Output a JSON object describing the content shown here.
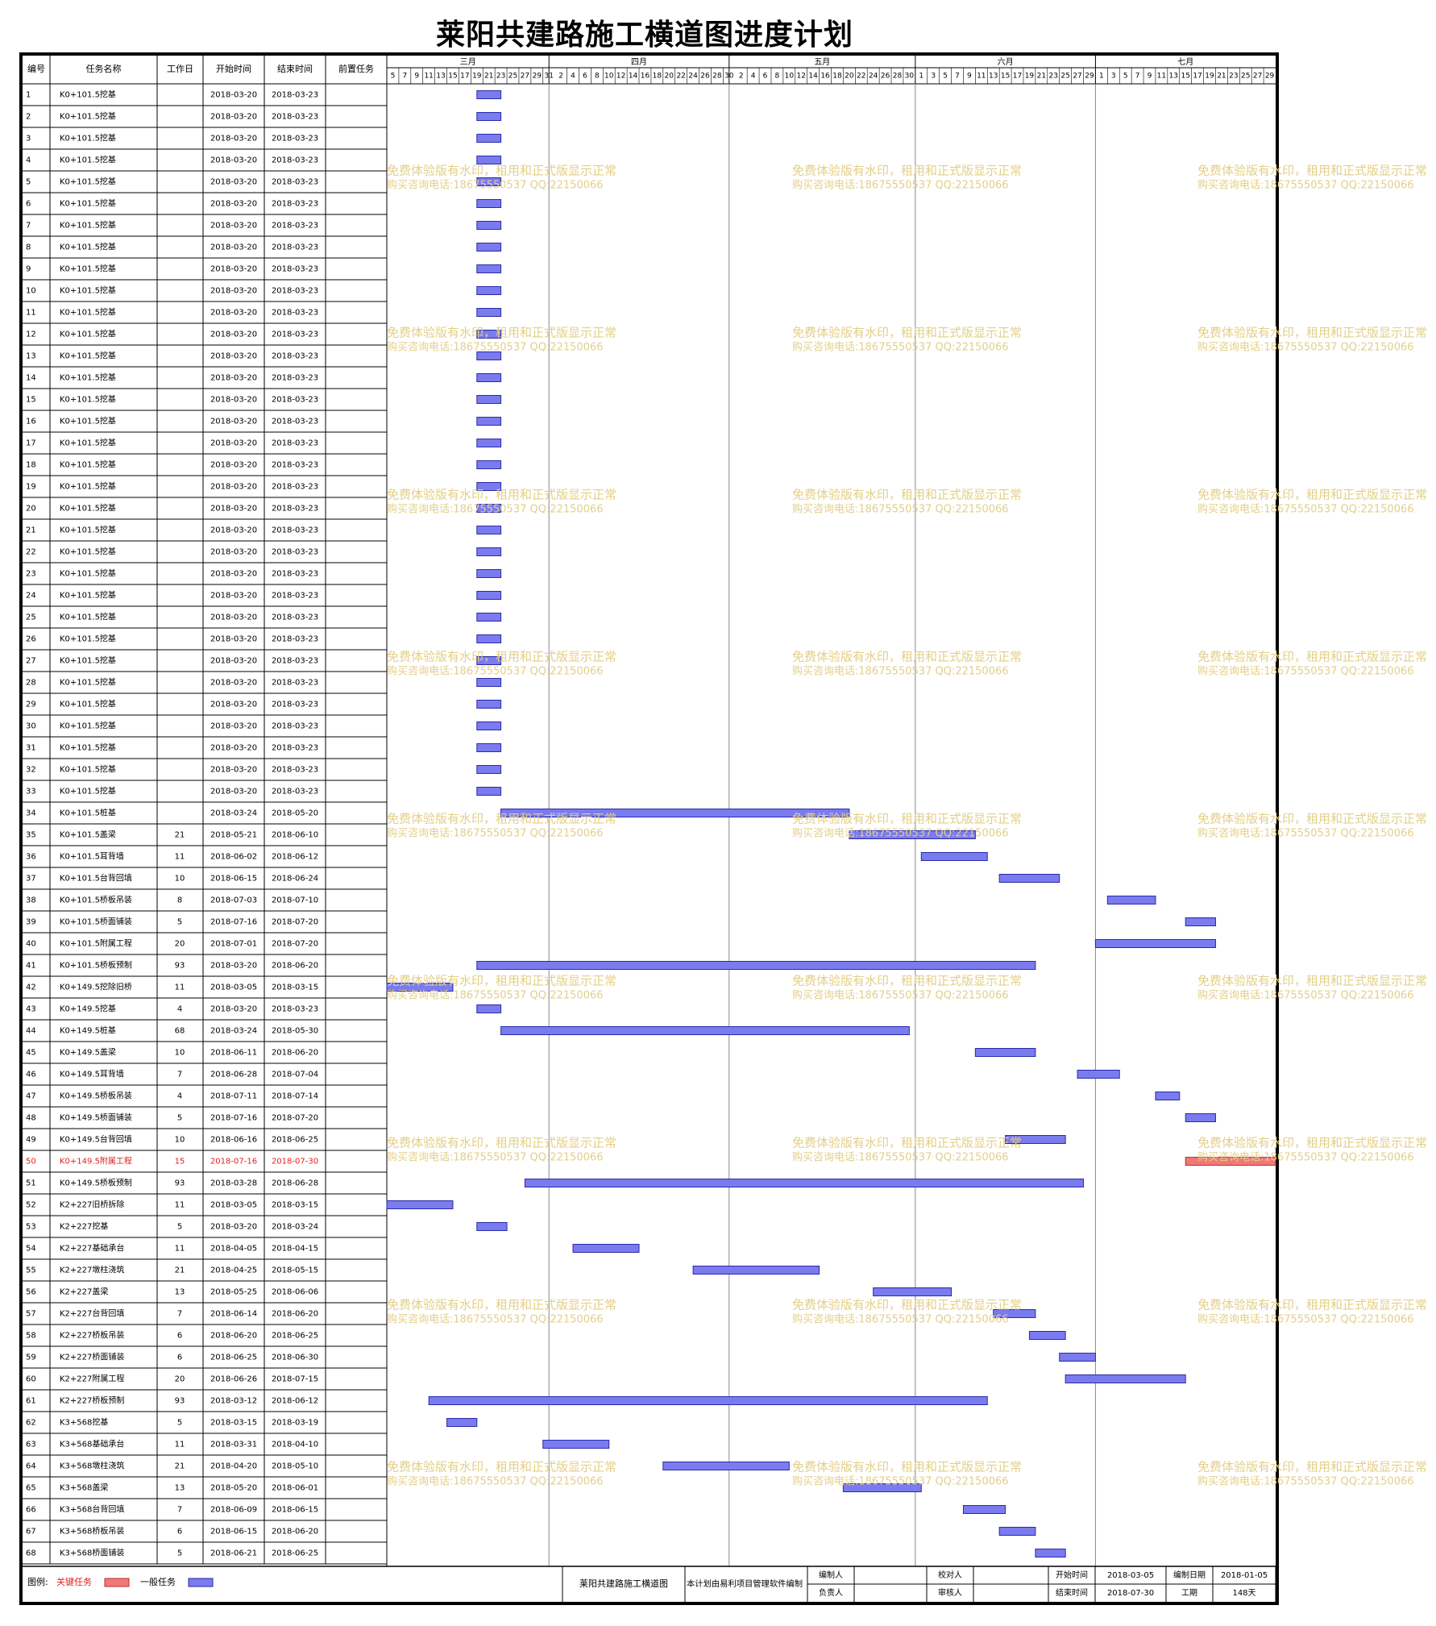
{
  "title": "莱阳共建路施工横道图进度计划",
  "columns": [
    "编号",
    "任务名称",
    "工作日",
    "开始时间",
    "结束时间",
    "前置任务"
  ],
  "months": [
    {
      "label": "三月",
      "days": [
        5,
        7,
        9,
        11,
        13,
        15,
        17,
        19,
        21,
        23,
        25,
        27,
        29,
        31
      ]
    },
    {
      "label": "四月",
      "days": [
        2,
        4,
        6,
        8,
        10,
        12,
        14,
        16,
        18,
        20,
        22,
        24,
        26,
        28,
        30
      ]
    },
    {
      "label": "五月",
      "days": [
        2,
        4,
        6,
        8,
        10,
        12,
        14,
        16,
        18,
        20,
        22,
        24,
        26,
        28,
        30
      ]
    },
    {
      "label": "六月",
      "days": [
        1,
        3,
        5,
        7,
        9,
        11,
        13,
        15,
        17,
        19,
        21,
        23,
        25,
        27,
        29
      ]
    },
    {
      "label": "七月",
      "days": [
        1,
        3,
        5,
        7,
        9,
        11,
        13,
        15,
        17,
        19,
        21,
        23,
        25,
        27,
        29
      ]
    }
  ],
  "chart_data": {
    "type": "gantt",
    "title": "莱阳共建路施工横道图进度计划",
    "x_range": [
      "2018-03-05",
      "2018-07-30"
    ],
    "tasks": [
      {
        "id": "1",
        "name": "K0+101.5挖基",
        "days": "",
        "start": "2018-03-20",
        "end": "2018-03-23",
        "pred": "",
        "critical": false
      },
      {
        "id": "2",
        "name": "K0+101.5挖基",
        "days": "",
        "start": "2018-03-20",
        "end": "2018-03-23",
        "pred": "",
        "critical": false
      },
      {
        "id": "3",
        "name": "K0+101.5挖基",
        "days": "",
        "start": "2018-03-20",
        "end": "2018-03-23",
        "pred": "",
        "critical": false
      },
      {
        "id": "4",
        "name": "K0+101.5挖基",
        "days": "",
        "start": "2018-03-20",
        "end": "2018-03-23",
        "pred": "",
        "critical": false
      },
      {
        "id": "5",
        "name": "K0+101.5挖基",
        "days": "",
        "start": "2018-03-20",
        "end": "2018-03-23",
        "pred": "",
        "critical": false
      },
      {
        "id": "6",
        "name": "K0+101.5挖基",
        "days": "",
        "start": "2018-03-20",
        "end": "2018-03-23",
        "pred": "",
        "critical": false
      },
      {
        "id": "7",
        "name": "K0+101.5挖基",
        "days": "",
        "start": "2018-03-20",
        "end": "2018-03-23",
        "pred": "",
        "critical": false
      },
      {
        "id": "8",
        "name": "K0+101.5挖基",
        "days": "",
        "start": "2018-03-20",
        "end": "2018-03-23",
        "pred": "",
        "critical": false
      },
      {
        "id": "9",
        "name": "K0+101.5挖基",
        "days": "",
        "start": "2018-03-20",
        "end": "2018-03-23",
        "pred": "",
        "critical": false
      },
      {
        "id": "10",
        "name": "K0+101.5挖基",
        "days": "",
        "start": "2018-03-20",
        "end": "2018-03-23",
        "pred": "",
        "critical": false
      },
      {
        "id": "11",
        "name": "K0+101.5挖基",
        "days": "",
        "start": "2018-03-20",
        "end": "2018-03-23",
        "pred": "",
        "critical": false
      },
      {
        "id": "12",
        "name": "K0+101.5挖基",
        "days": "",
        "start": "2018-03-20",
        "end": "2018-03-23",
        "pred": "",
        "critical": false
      },
      {
        "id": "13",
        "name": "K0+101.5挖基",
        "days": "",
        "start": "2018-03-20",
        "end": "2018-03-23",
        "pred": "",
        "critical": false
      },
      {
        "id": "14",
        "name": "K0+101.5挖基",
        "days": "",
        "start": "2018-03-20",
        "end": "2018-03-23",
        "pred": "",
        "critical": false
      },
      {
        "id": "15",
        "name": "K0+101.5挖基",
        "days": "",
        "start": "2018-03-20",
        "end": "2018-03-23",
        "pred": "",
        "critical": false
      },
      {
        "id": "16",
        "name": "K0+101.5挖基",
        "days": "",
        "start": "2018-03-20",
        "end": "2018-03-23",
        "pred": "",
        "critical": false
      },
      {
        "id": "17",
        "name": "K0+101.5挖基",
        "days": "",
        "start": "2018-03-20",
        "end": "2018-03-23",
        "pred": "",
        "critical": false
      },
      {
        "id": "18",
        "name": "K0+101.5挖基",
        "days": "",
        "start": "2018-03-20",
        "end": "2018-03-23",
        "pred": "",
        "critical": false
      },
      {
        "id": "19",
        "name": "K0+101.5挖基",
        "days": "",
        "start": "2018-03-20",
        "end": "2018-03-23",
        "pred": "",
        "critical": false
      },
      {
        "id": "20",
        "name": "K0+101.5挖基",
        "days": "",
        "start": "2018-03-20",
        "end": "2018-03-23",
        "pred": "",
        "critical": false
      },
      {
        "id": "21",
        "name": "K0+101.5挖基",
        "days": "",
        "start": "2018-03-20",
        "end": "2018-03-23",
        "pred": "",
        "critical": false
      },
      {
        "id": "22",
        "name": "K0+101.5挖基",
        "days": "",
        "start": "2018-03-20",
        "end": "2018-03-23",
        "pred": "",
        "critical": false
      },
      {
        "id": "23",
        "name": "K0+101.5挖基",
        "days": "",
        "start": "2018-03-20",
        "end": "2018-03-23",
        "pred": "",
        "critical": false
      },
      {
        "id": "24",
        "name": "K0+101.5挖基",
        "days": "",
        "start": "2018-03-20",
        "end": "2018-03-23",
        "pred": "",
        "critical": false
      },
      {
        "id": "25",
        "name": "K0+101.5挖基",
        "days": "",
        "start": "2018-03-20",
        "end": "2018-03-23",
        "pred": "",
        "critical": false
      },
      {
        "id": "26",
        "name": "K0+101.5挖基",
        "days": "",
        "start": "2018-03-20",
        "end": "2018-03-23",
        "pred": "",
        "critical": false
      },
      {
        "id": "27",
        "name": "K0+101.5挖基",
        "days": "",
        "start": "2018-03-20",
        "end": "2018-03-23",
        "pred": "",
        "critical": false
      },
      {
        "id": "28",
        "name": "K0+101.5挖基",
        "days": "",
        "start": "2018-03-20",
        "end": "2018-03-23",
        "pred": "",
        "critical": false
      },
      {
        "id": "29",
        "name": "K0+101.5挖基",
        "days": "",
        "start": "2018-03-20",
        "end": "2018-03-23",
        "pred": "",
        "critical": false
      },
      {
        "id": "30",
        "name": "K0+101.5挖基",
        "days": "",
        "start": "2018-03-20",
        "end": "2018-03-23",
        "pred": "",
        "critical": false
      },
      {
        "id": "31",
        "name": "K0+101.5挖基",
        "days": "",
        "start": "2018-03-20",
        "end": "2018-03-23",
        "pred": "",
        "critical": false
      },
      {
        "id": "32",
        "name": "K0+101.5挖基",
        "days": "",
        "start": "2018-03-20",
        "end": "2018-03-23",
        "pred": "",
        "critical": false
      },
      {
        "id": "33",
        "name": "K0+101.5挖基",
        "days": "",
        "start": "2018-03-20",
        "end": "2018-03-23",
        "pred": "",
        "critical": false
      },
      {
        "id": "34",
        "name": "K0+101.5桩基",
        "days": "",
        "start": "2018-03-24",
        "end": "2018-05-20",
        "pred": "",
        "critical": false
      },
      {
        "id": "35",
        "name": "K0+101.5盖梁",
        "days": "21",
        "start": "2018-05-21",
        "end": "2018-06-10",
        "pred": "",
        "critical": false
      },
      {
        "id": "36",
        "name": "K0+101.5耳背墙",
        "days": "11",
        "start": "2018-06-02",
        "end": "2018-06-12",
        "pred": "",
        "critical": false
      },
      {
        "id": "37",
        "name": "K0+101.5台背回填",
        "days": "10",
        "start": "2018-06-15",
        "end": "2018-06-24",
        "pred": "",
        "critical": false
      },
      {
        "id": "38",
        "name": "K0+101.5桥板吊装",
        "days": "8",
        "start": "2018-07-03",
        "end": "2018-07-10",
        "pred": "",
        "critical": false
      },
      {
        "id": "39",
        "name": "K0+101.5桥面铺装",
        "days": "5",
        "start": "2018-07-16",
        "end": "2018-07-20",
        "pred": "",
        "critical": false
      },
      {
        "id": "40",
        "name": "K0+101.5附属工程",
        "days": "20",
        "start": "2018-07-01",
        "end": "2018-07-20",
        "pred": "",
        "critical": false
      },
      {
        "id": "41",
        "name": "K0+101.5桥板预制",
        "days": "93",
        "start": "2018-03-20",
        "end": "2018-06-20",
        "pred": "",
        "critical": false
      },
      {
        "id": "42",
        "name": "K0+149.5挖除旧桥",
        "days": "11",
        "start": "2018-03-05",
        "end": "2018-03-15",
        "pred": "",
        "critical": false
      },
      {
        "id": "43",
        "name": "K0+149.5挖基",
        "days": "4",
        "start": "2018-03-20",
        "end": "2018-03-23",
        "pred": "",
        "critical": false
      },
      {
        "id": "44",
        "name": "K0+149.5桩基",
        "days": "68",
        "start": "2018-03-24",
        "end": "2018-05-30",
        "pred": "",
        "critical": false
      },
      {
        "id": "45",
        "name": "K0+149.5盖梁",
        "days": "10",
        "start": "2018-06-11",
        "end": "2018-06-20",
        "pred": "",
        "critical": false
      },
      {
        "id": "46",
        "name": "K0+149.5耳背墙",
        "days": "7",
        "start": "2018-06-28",
        "end": "2018-07-04",
        "pred": "",
        "critical": false
      },
      {
        "id": "47",
        "name": "K0+149.5桥板吊装",
        "days": "4",
        "start": "2018-07-11",
        "end": "2018-07-14",
        "pred": "",
        "critical": false
      },
      {
        "id": "48",
        "name": "K0+149.5桥面铺装",
        "days": "5",
        "start": "2018-07-16",
        "end": "2018-07-20",
        "pred": "",
        "critical": false
      },
      {
        "id": "49",
        "name": "K0+149.5台背回填",
        "days": "10",
        "start": "2018-06-16",
        "end": "2018-06-25",
        "pred": "",
        "critical": false
      },
      {
        "id": "50",
        "name": "K0+149.5附属工程",
        "days": "15",
        "start": "2018-07-16",
        "end": "2018-07-30",
        "pred": "",
        "critical": true
      },
      {
        "id": "51",
        "name": "K0+149.5桥板预制",
        "days": "93",
        "start": "2018-03-28",
        "end": "2018-06-28",
        "pred": "",
        "critical": false
      },
      {
        "id": "52",
        "name": "K2+227旧桥拆除",
        "days": "11",
        "start": "2018-03-05",
        "end": "2018-03-15",
        "pred": "",
        "critical": false
      },
      {
        "id": "53",
        "name": "K2+227挖基",
        "days": "5",
        "start": "2018-03-20",
        "end": "2018-03-24",
        "pred": "",
        "critical": false
      },
      {
        "id": "54",
        "name": "K2+227基础承台",
        "days": "11",
        "start": "2018-04-05",
        "end": "2018-04-15",
        "pred": "",
        "critical": false
      },
      {
        "id": "55",
        "name": "K2+227墩柱浇筑",
        "days": "21",
        "start": "2018-04-25",
        "end": "2018-05-15",
        "pred": "",
        "critical": false
      },
      {
        "id": "56",
        "name": "K2+227盖梁",
        "days": "13",
        "start": "2018-05-25",
        "end": "2018-06-06",
        "pred": "",
        "critical": false
      },
      {
        "id": "57",
        "name": "K2+227台背回填",
        "days": "7",
        "start": "2018-06-14",
        "end": "2018-06-20",
        "pred": "",
        "critical": false
      },
      {
        "id": "58",
        "name": "K2+227桥板吊装",
        "days": "6",
        "start": "2018-06-20",
        "end": "2018-06-25",
        "pred": "",
        "critical": false
      },
      {
        "id": "59",
        "name": "K2+227桥面铺装",
        "days": "6",
        "start": "2018-06-25",
        "end": "2018-06-30",
        "pred": "",
        "critical": false
      },
      {
        "id": "60",
        "name": "K2+227附属工程",
        "days": "20",
        "start": "2018-06-26",
        "end": "2018-07-15",
        "pred": "",
        "critical": false
      },
      {
        "id": "61",
        "name": "K2+227桥板预制",
        "days": "93",
        "start": "2018-03-12",
        "end": "2018-06-12",
        "pred": "",
        "critical": false
      },
      {
        "id": "62",
        "name": "K3+568挖基",
        "days": "5",
        "start": "2018-03-15",
        "end": "2018-03-19",
        "pred": "",
        "critical": false
      },
      {
        "id": "63",
        "name": "K3+568基础承台",
        "days": "11",
        "start": "2018-03-31",
        "end": "2018-04-10",
        "pred": "",
        "critical": false
      },
      {
        "id": "64",
        "name": "K3+568墩柱浇筑",
        "days": "21",
        "start": "2018-04-20",
        "end": "2018-05-10",
        "pred": "",
        "critical": false
      },
      {
        "id": "65",
        "name": "K3+568盖梁",
        "days": "13",
        "start": "2018-05-20",
        "end": "2018-06-01",
        "pred": "",
        "critical": false
      },
      {
        "id": "66",
        "name": "K3+568台背回填",
        "days": "7",
        "start": "2018-06-09",
        "end": "2018-06-15",
        "pred": "",
        "critical": false
      },
      {
        "id": "67",
        "name": "K3+568桥板吊装",
        "days": "6",
        "start": "2018-06-15",
        "end": "2018-06-20",
        "pred": "",
        "critical": false
      },
      {
        "id": "68",
        "name": "K3+568桥面铺装",
        "days": "5",
        "start": "2018-06-21",
        "end": "2018-06-25",
        "pred": "",
        "critical": false
      }
    ]
  },
  "legend": {
    "label": "图例:",
    "critical": "关键任务",
    "normal": "一般任务"
  },
  "footer": {
    "project": "莱阳共建路施工横道图",
    "note": "本计划由易利项目管理软件编制",
    "compiler_label": "编制人",
    "checker_label": "校对人",
    "start_label": "开始时间",
    "start_value": "2018-03-05",
    "date_label": "编制日期",
    "date_value": "2018-01-05",
    "manager_label": "负责人",
    "reviewer_label": "审核人",
    "end_label": "结束时间",
    "end_value": "2018-07-30",
    "duration_label": "工期",
    "duration_value": "148天"
  },
  "watermark": {
    "line1": "免费体验版有水印，租用和正式版显示正常",
    "line2": "购买咨询电话:18675550537 QQ:22150066"
  },
  "colors": {
    "normal_bar": "#7b7bf0",
    "normal_bar_border": "#2a2aa8",
    "critical_bar": "#f07878",
    "critical_bar_border": "#c03030",
    "critical_text": "#e02020",
    "watermark": "#e3cf86"
  }
}
